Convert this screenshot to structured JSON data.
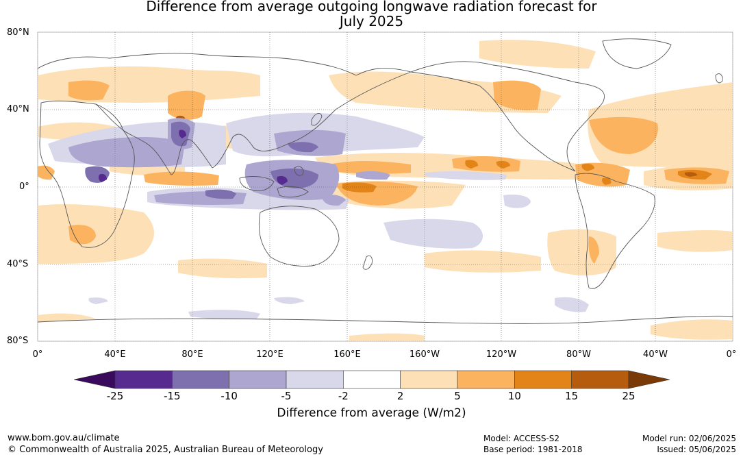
{
  "title": {
    "line1": "Difference from average outgoing longwave radiation forecast for",
    "line2": "July 2025"
  },
  "map": {
    "lat_labels": [
      "80°N",
      "40°N",
      "0°",
      "40°S",
      "80°S"
    ],
    "lon_labels": [
      "0°",
      "40°E",
      "80°E",
      "120°E",
      "160°E",
      "160°W",
      "120°W",
      "80°W",
      "40°W",
      "0°"
    ],
    "anomaly_regions": [
      {
        "name": "west-africa-high",
        "level": 3
      },
      {
        "name": "india-low",
        "level": -2
      },
      {
        "name": "maritime-continent-low",
        "level": -3
      },
      {
        "name": "central-pacific-high",
        "level": 4
      },
      {
        "name": "atlantic-high",
        "level": 4
      },
      {
        "name": "north-atlantic-high",
        "level": 3
      }
    ]
  },
  "colorbar": {
    "ticks": [
      "-25",
      "-15",
      "-10",
      "-5",
      "-2",
      "2",
      "5",
      "10",
      "15",
      "25"
    ],
    "colors": [
      "#3a0a5c",
      "#562a8f",
      "#7e6fae",
      "#aca6d0",
      "#d9d7ea",
      "#ffffff",
      "#fde0b5",
      "#fbb35f",
      "#e28417",
      "#b55c0f",
      "#7a3a08"
    ],
    "label": "Difference from average (W/m2)"
  },
  "footer": {
    "url": "www.bom.gov.au/climate",
    "copyright": "© Commonwealth of Australia 2025, Australian Bureau of Meteorology",
    "model": "Model: ACCESS-S2",
    "base_period": "Base period: 1981-2018",
    "model_run": "Model run: 02/06/2025",
    "issued": "Issued: 05/06/2025"
  }
}
